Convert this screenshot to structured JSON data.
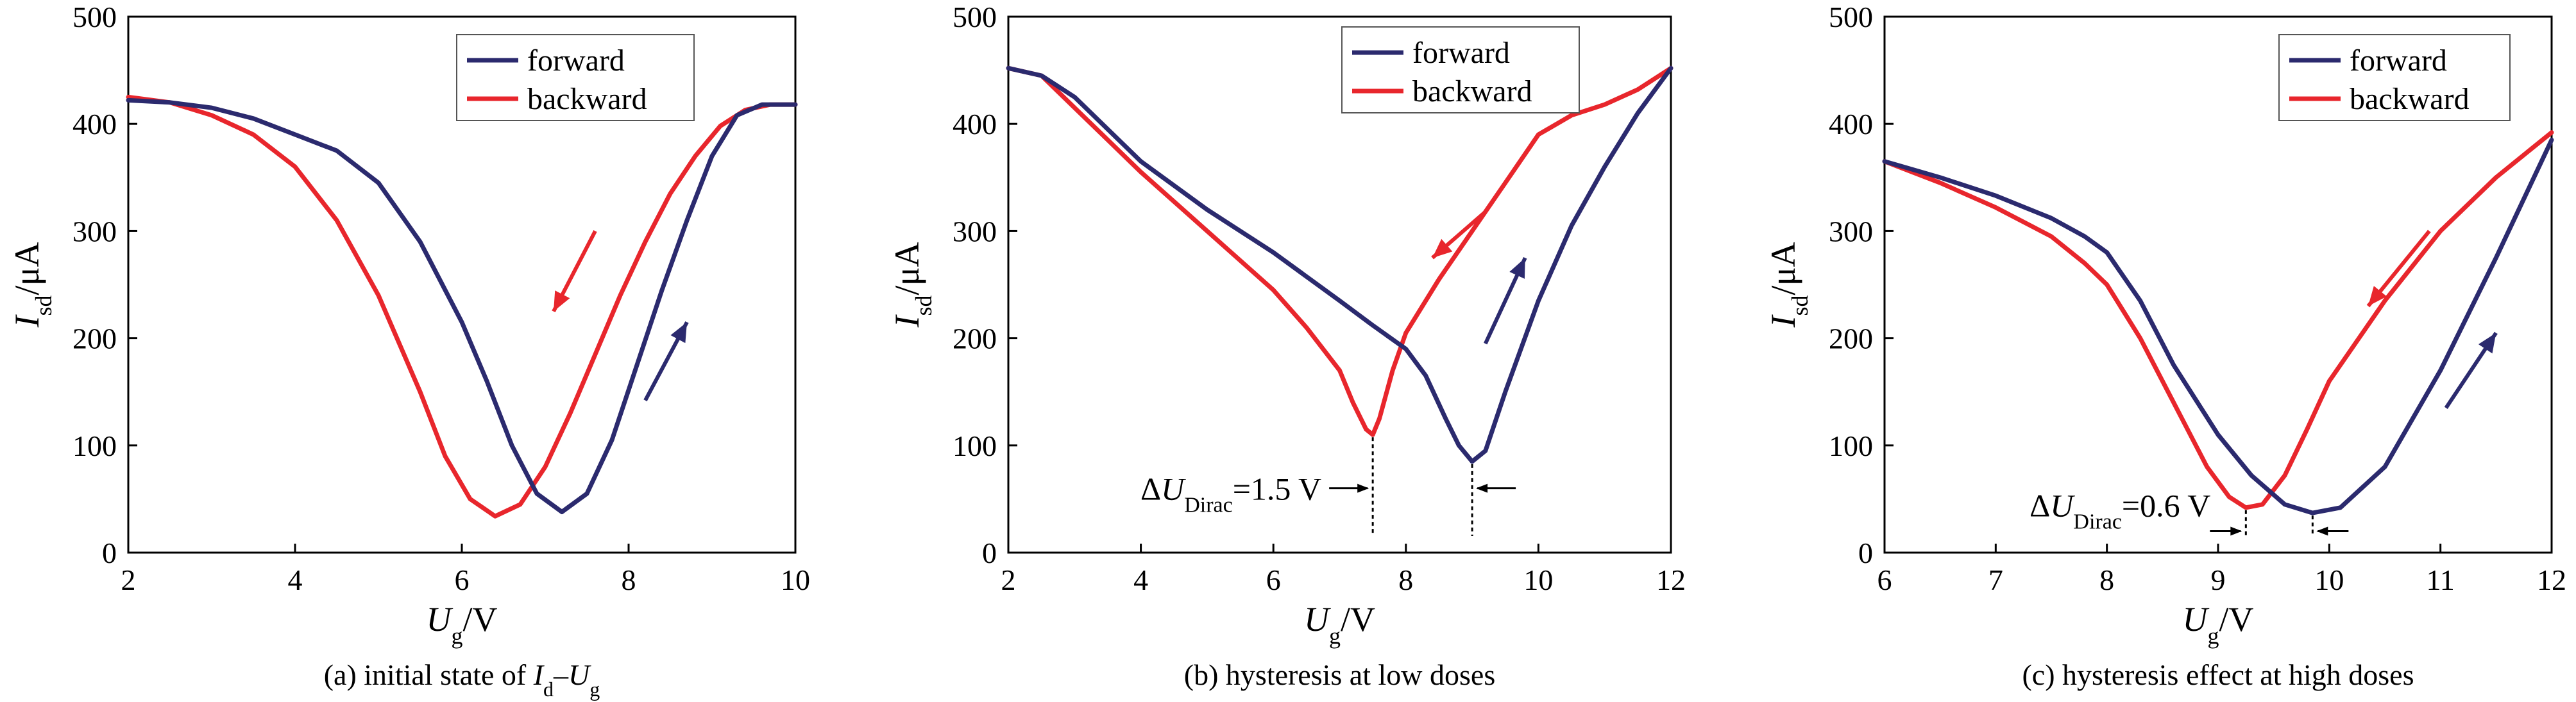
{
  "figure": {
    "panels": [
      {
        "caption": "(a) initial state of Id–Ug",
        "caption_parts": {
          "prefix": "(a) initial state of ",
          "var1": "I",
          "sub1": "d",
          "dash": "–",
          "var2": "U",
          "sub2": "g"
        },
        "xlabel": {
          "var": "U",
          "sub": "g",
          "unit": "/V"
        },
        "ylabel": {
          "var": "I",
          "sub": "sd",
          "unit": "/μA"
        },
        "legend": [
          "forward",
          "backward"
        ],
        "annotation": null
      },
      {
        "caption": "(b) hysteresis at low doses",
        "xlabel": {
          "var": "U",
          "sub": "g",
          "unit": "/V"
        },
        "ylabel": {
          "var": "I",
          "sub": "sd",
          "unit": "/μA"
        },
        "legend": [
          "forward",
          "backward"
        ],
        "annotation": {
          "prefix": "ΔU",
          "sub": "Dirac",
          "suffix": "=1.5 V"
        }
      },
      {
        "caption": "(c) hysteresis effect at high doses",
        "xlabel": {
          "var": "U",
          "sub": "g",
          "unit": "/V"
        },
        "ylabel": {
          "var": "I",
          "sub": "sd",
          "unit": "/μA"
        },
        "legend": [
          "forward",
          "backward"
        ],
        "annotation": {
          "prefix": "ΔU",
          "sub": "Dirac",
          "suffix": "=0.6 V"
        }
      }
    ]
  },
  "colors": {
    "forward": "#2b2a6e",
    "backward": "#e8262c",
    "axis": "#000000"
  },
  "chart_data": [
    {
      "type": "line",
      "title": "(a) initial state of Id–Ug",
      "xlabel": "Ug/V",
      "ylabel": "Isd/μA",
      "xlim": [
        2,
        10
      ],
      "ylim": [
        0,
        500
      ],
      "xticks": [
        2,
        4,
        6,
        8,
        10
      ],
      "yticks": [
        0,
        100,
        200,
        300,
        400,
        500
      ],
      "legend_position": "top-right",
      "series": [
        {
          "name": "forward",
          "color": "#2b2a6e",
          "x": [
            2,
            2.5,
            3,
            3.5,
            4,
            4.5,
            5,
            5.5,
            6,
            6.3,
            6.6,
            6.9,
            7.2,
            7.5,
            7.8,
            8.1,
            8.4,
            8.7,
            9,
            9.3,
            9.6,
            10
          ],
          "y": [
            422,
            420,
            415,
            405,
            390,
            375,
            345,
            290,
            215,
            160,
            100,
            55,
            38,
            55,
            105,
            175,
            245,
            310,
            370,
            408,
            418,
            418
          ]
        },
        {
          "name": "backward",
          "color": "#e8262c",
          "x": [
            2,
            2.5,
            3,
            3.5,
            4,
            4.5,
            5,
            5.5,
            5.8,
            6.1,
            6.4,
            6.7,
            7,
            7.3,
            7.6,
            7.9,
            8.2,
            8.5,
            8.8,
            9.1,
            9.4,
            9.7,
            10
          ],
          "y": [
            425,
            420,
            408,
            390,
            360,
            310,
            240,
            150,
            90,
            50,
            34,
            45,
            80,
            130,
            185,
            240,
            290,
            335,
            370,
            398,
            413,
            418,
            418
          ]
        }
      ],
      "arrows": [
        {
          "series": "backward",
          "direction": "down-left",
          "from": [
            7.6,
            300
          ],
          "to": [
            7.1,
            225
          ]
        },
        {
          "series": "forward",
          "direction": "up-right",
          "from": [
            8.2,
            142
          ],
          "to": [
            8.7,
            215
          ]
        }
      ]
    },
    {
      "type": "line",
      "title": "(b) hysteresis at low doses",
      "xlabel": "Ug/V",
      "ylabel": "Isd/μA",
      "xlim": [
        2,
        12
      ],
      "ylim": [
        0,
        500
      ],
      "xticks": [
        2,
        4,
        6,
        8,
        10,
        12
      ],
      "yticks": [
        0,
        100,
        200,
        300,
        400,
        500
      ],
      "legend_position": "top-right",
      "series": [
        {
          "name": "forward",
          "color": "#2b2a6e",
          "x": [
            2,
            2.5,
            3,
            3.5,
            4,
            5,
            6,
            7,
            7.5,
            8,
            8.3,
            8.6,
            8.8,
            9,
            9.2,
            9.5,
            10,
            10.5,
            11,
            11.5,
            12
          ],
          "y": [
            452,
            445,
            425,
            395,
            365,
            320,
            280,
            235,
            212,
            190,
            165,
            125,
            100,
            85,
            95,
            150,
            235,
            305,
            360,
            410,
            452
          ]
        },
        {
          "name": "backward",
          "color": "#e8262c",
          "x": [
            2,
            2.5,
            3,
            3.5,
            4,
            5,
            6,
            6.5,
            7,
            7.2,
            7.4,
            7.5,
            7.6,
            7.8,
            8,
            8.5,
            9,
            9.5,
            10,
            10.5,
            11,
            11.5,
            12
          ],
          "y": [
            452,
            445,
            415,
            385,
            355,
            300,
            245,
            210,
            170,
            140,
            115,
            110,
            125,
            170,
            205,
            255,
            300,
            345,
            390,
            408,
            418,
            432,
            452
          ]
        }
      ],
      "arrows": [
        {
          "series": "backward",
          "direction": "down-left",
          "from": [
            9.2,
            318
          ],
          "to": [
            8.4,
            275
          ]
        },
        {
          "series": "forward",
          "direction": "up-right",
          "from": [
            9.2,
            195
          ],
          "to": [
            9.8,
            275
          ]
        }
      ],
      "dirac_points": [
        7.5,
        9.0
      ],
      "annotation": "ΔUDirac=1.5 V"
    },
    {
      "type": "line",
      "title": "(c) hysteresis effect at high doses",
      "xlabel": "Ug/V",
      "ylabel": "Isd/μA",
      "xlim": [
        6,
        12
      ],
      "ylim": [
        0,
        500
      ],
      "xticks": [
        6,
        7,
        8,
        9,
        10,
        11,
        12
      ],
      "yticks": [
        0,
        100,
        200,
        300,
        400,
        500
      ],
      "legend_position": "top-right",
      "series": [
        {
          "name": "forward",
          "color": "#2b2a6e",
          "x": [
            6,
            6.5,
            7,
            7.5,
            7.8,
            8,
            8.3,
            8.6,
            9,
            9.3,
            9.6,
            9.85,
            10.1,
            10.5,
            11,
            11.5,
            12
          ],
          "y": [
            365,
            350,
            333,
            312,
            295,
            280,
            235,
            175,
            110,
            72,
            45,
            37,
            42,
            80,
            170,
            275,
            385
          ]
        },
        {
          "name": "backward",
          "color": "#e8262c",
          "x": [
            6,
            6.5,
            7,
            7.5,
            7.8,
            8,
            8.3,
            8.6,
            8.9,
            9.1,
            9.25,
            9.4,
            9.6,
            9.8,
            10,
            10.5,
            11,
            11.5,
            12
          ],
          "y": [
            365,
            345,
            322,
            295,
            270,
            250,
            200,
            140,
            80,
            52,
            42,
            45,
            72,
            115,
            160,
            235,
            300,
            350,
            392
          ]
        }
      ],
      "arrows": [
        {
          "series": "backward",
          "direction": "down-left",
          "from": [
            10.9,
            300
          ],
          "to": [
            10.35,
            230
          ]
        },
        {
          "series": "forward",
          "direction": "up-right",
          "from": [
            11.05,
            135
          ],
          "to": [
            11.5,
            205
          ]
        }
      ],
      "dirac_points": [
        9.25,
        9.85
      ],
      "annotation": "ΔUDirac=0.6 V"
    }
  ]
}
